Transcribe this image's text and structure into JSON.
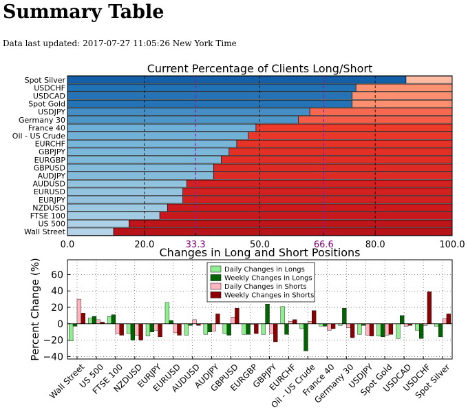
{
  "page": {
    "title": "Summary Table",
    "updated_label": "Data last updated: 2017-07-27 11:05:26 New York Time"
  },
  "colors": {
    "long_gradient": [
      "#c6dbef",
      "#9ecae1",
      "#6baed6",
      "#2171b5",
      "#08519c"
    ],
    "short_gradient": [
      "#fee0d2",
      "#fc9272",
      "#ef3b2c",
      "#cb181d",
      "#a50f15"
    ],
    "threshold_line": "#7b1fa2",
    "daily_long": "#90ee90",
    "weekly_long": "#006400",
    "daily_short": "#ffb6c1",
    "weekly_short": "#8b0000"
  },
  "chart_data": [
    {
      "type": "bar",
      "orientation": "horizontal-stacked",
      "title": "Current Percentage of Clients Long/Short",
      "xlim": [
        0,
        100
      ],
      "xticks": [
        "0.0",
        "20.0",
        "33.3",
        "50.0",
        "66.6",
        "80.0",
        "100.0"
      ],
      "xtick_values": [
        0,
        20,
        33.3,
        50,
        66.6,
        80,
        100
      ],
      "highlight_ticks": [
        "33.3",
        "66.6"
      ],
      "categories": [
        "Spot Silver",
        "USDCHF",
        "USDCAD",
        "Spot Gold",
        "USDJPY",
        "Germany 30",
        "France 40",
        "Oil - US Crude",
        "EURCHF",
        "GBPJPY",
        "EURGBP",
        "GBPUSD",
        "AUDJPY",
        "AUDUSD",
        "EURUSD",
        "EURJPY",
        "NZDUSD",
        "FTSE 100",
        "US 500",
        "Wall Street"
      ],
      "long_pct": [
        88,
        75,
        74,
        74,
        63,
        60,
        49,
        47,
        44,
        42,
        40,
        38,
        38,
        31,
        30,
        30,
        26,
        24,
        16,
        12
      ],
      "grid": true
    },
    {
      "type": "bar",
      "title": "Changes in Long and Short Positions",
      "ylabel": "Percent Change (%)",
      "ylim": [
        -43,
        78
      ],
      "yticks": [
        "60",
        "40",
        "20",
        "0",
        "−20",
        "−40"
      ],
      "ytick_values": [
        60,
        40,
        20,
        0,
        -20,
        -40
      ],
      "legend_position": "top-center",
      "categories": [
        "Wall Street",
        "US 500",
        "FTSE 100",
        "NZDUSD",
        "EURJPY",
        "EURUSD",
        "AUDUSD",
        "AUDJPY",
        "GBPUSD",
        "EURGBP",
        "GBPJPY",
        "EURCHF",
        "Oil - US Crude",
        "France 40",
        "Germany 30",
        "USDJPY",
        "Spot Gold",
        "USDCAD",
        "USDCHF",
        "Spot Silver"
      ],
      "series": [
        {
          "name": "Daily Changes in Longs",
          "values": [
            -21,
            7,
            9,
            -12,
            -15,
            26,
            -14,
            -13,
            -12,
            -13,
            -13,
            21,
            -6,
            -3,
            -2,
            -13,
            -15,
            -18,
            -8,
            -3
          ]
        },
        {
          "name": "Weekly Changes in Longs",
          "values": [
            -3,
            9,
            11,
            -20,
            -10,
            4,
            -2,
            -10,
            -14,
            -13,
            24,
            -13,
            -33,
            -3,
            19,
            -2,
            -16,
            10,
            -18,
            -16
          ]
        },
        {
          "name": "Daily Changes in Shorts",
          "values": [
            30,
            5,
            -12,
            -14,
            -8,
            -11,
            5,
            -9,
            8,
            -1,
            -12,
            3,
            3,
            -8,
            -5,
            -14,
            -14,
            -3,
            -2,
            6
          ]
        },
        {
          "name": "Weekly Changes in Shorts",
          "values": [
            13,
            2,
            -14,
            -20,
            -16,
            -14,
            -2,
            12,
            19,
            -12,
            -22,
            5,
            16,
            -6,
            -17,
            -15,
            -13,
            -2,
            39,
            12
          ]
        }
      ],
      "grid": true
    }
  ]
}
